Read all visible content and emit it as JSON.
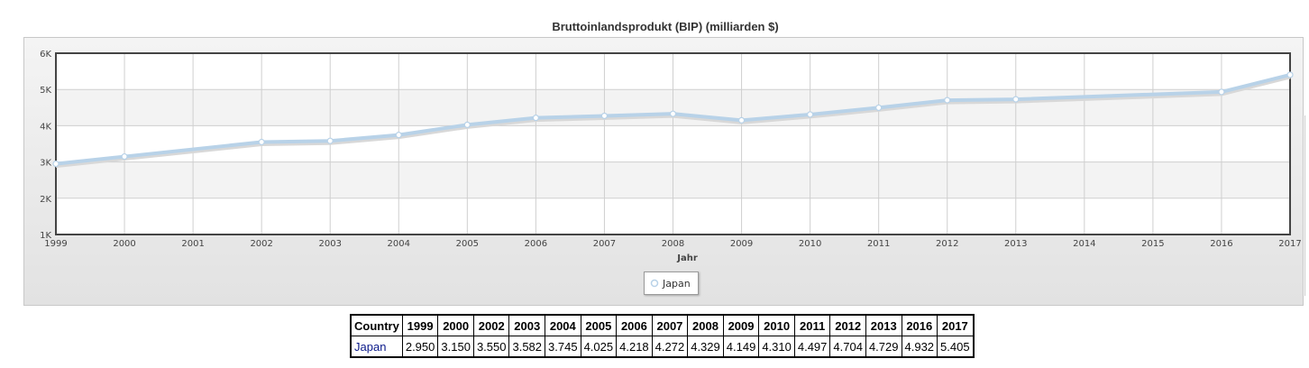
{
  "chart_data": {
    "type": "line",
    "title": "Bruttoinlandsprodukt (BIP) (milliarden $)",
    "xlabel": "Jahr",
    "ylabel": "",
    "xlim": [
      1999,
      2017
    ],
    "ylim": [
      1,
      6
    ],
    "x_ticks": [
      "1999",
      "2000",
      "2001",
      "2002",
      "2003",
      "2004",
      "2005",
      "2006",
      "2007",
      "2008",
      "2009",
      "2010",
      "2011",
      "2012",
      "2013",
      "2014",
      "2015",
      "2016",
      "2017"
    ],
    "y_ticks": [
      "1K",
      "2K",
      "3K",
      "4K",
      "5K",
      "6K"
    ],
    "grid": true,
    "legend_position": "bottom-center",
    "series": [
      {
        "name": "Japan",
        "color": "#b8d2e8",
        "x": [
          1999,
          2000,
          2002,
          2003,
          2004,
          2005,
          2006,
          2007,
          2008,
          2009,
          2010,
          2011,
          2012,
          2013,
          2016,
          2017
        ],
        "y": [
          2.95,
          3.15,
          3.55,
          3.582,
          3.745,
          4.025,
          4.218,
          4.272,
          4.329,
          4.149,
          4.31,
          4.497,
          4.704,
          4.729,
          4.932,
          5.405
        ]
      }
    ]
  },
  "table": {
    "headers": [
      "Country",
      "1999",
      "2000",
      "2002",
      "2003",
      "2004",
      "2005",
      "2006",
      "2007",
      "2008",
      "2009",
      "2010",
      "2011",
      "2012",
      "2013",
      "2016",
      "2017"
    ],
    "row": [
      "Japan",
      "2.950",
      "3.150",
      "3.550",
      "3.582",
      "3.745",
      "4.025",
      "4.218",
      "4.272",
      "4.329",
      "4.149",
      "4.310",
      "4.497",
      "4.704",
      "4.729",
      "4.932",
      "5.405"
    ]
  }
}
